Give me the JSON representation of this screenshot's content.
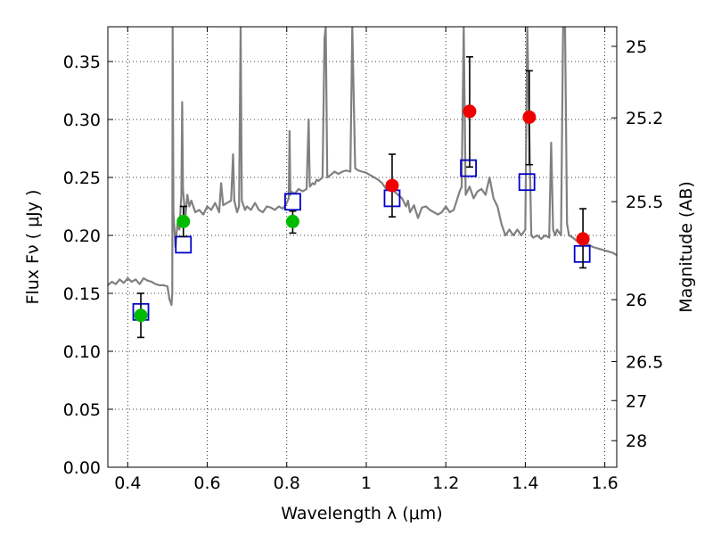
{
  "chart_data": {
    "type": "scatter",
    "title": "",
    "xlabel": "Wavelength  λ (μm)",
    "ylabel": "Flux  Fν  ( μJy )",
    "y2label": "Magnitude (AB)",
    "xlim": [
      0.35,
      1.63
    ],
    "ylim": [
      0.0,
      0.38
    ],
    "grid": true,
    "x_ticks": [
      {
        "value": 0.4,
        "label": "0.4"
      },
      {
        "value": 0.6,
        "label": "0.6"
      },
      {
        "value": 0.8,
        "label": "0.8"
      },
      {
        "value": 1.0,
        "label": "1"
      },
      {
        "value": 1.2,
        "label": "1.2"
      },
      {
        "value": 1.4,
        "label": "1.4"
      },
      {
        "value": 1.6,
        "label": "1.6"
      }
    ],
    "y_ticks": [
      {
        "value": 0.0,
        "label": "0.00"
      },
      {
        "value": 0.05,
        "label": "0.05"
      },
      {
        "value": 0.1,
        "label": "0.10"
      },
      {
        "value": 0.15,
        "label": "0.15"
      },
      {
        "value": 0.2,
        "label": "0.20"
      },
      {
        "value": 0.25,
        "label": "0.25"
      },
      {
        "value": 0.3,
        "label": "0.30"
      },
      {
        "value": 0.35,
        "label": "0.35"
      }
    ],
    "y2_ticks": [
      {
        "flux": 0.3631,
        "label": "25"
      },
      {
        "flux": 0.3014,
        "label": "25.2"
      },
      {
        "flux": 0.2291,
        "label": "25.5"
      },
      {
        "flux": 0.1446,
        "label": "26"
      },
      {
        "flux": 0.0912,
        "label": "26.5"
      },
      {
        "flux": 0.0575,
        "label": "27"
      },
      {
        "flux": 0.0229,
        "label": "28"
      }
    ],
    "series": [
      {
        "kind": "spectrum",
        "color": "#808080",
        "points": [
          [
            0.35,
            0.157
          ],
          [
            0.36,
            0.16
          ],
          [
            0.37,
            0.158
          ],
          [
            0.38,
            0.162
          ],
          [
            0.39,
            0.159
          ],
          [
            0.4,
            0.163
          ],
          [
            0.41,
            0.16
          ],
          [
            0.42,
            0.162
          ],
          [
            0.43,
            0.158
          ],
          [
            0.44,
            0.163
          ],
          [
            0.45,
            0.161
          ],
          [
            0.46,
            0.16
          ],
          [
            0.47,
            0.158
          ],
          [
            0.48,
            0.157
          ],
          [
            0.49,
            0.157
          ],
          [
            0.5,
            0.156
          ],
          [
            0.505,
            0.145
          ],
          [
            0.51,
            0.14
          ],
          [
            0.512,
            0.15
          ],
          [
            0.513,
            0.38
          ],
          [
            0.515,
            0.22
          ],
          [
            0.52,
            0.19
          ],
          [
            0.525,
            0.21
          ],
          [
            0.53,
            0.205
          ],
          [
            0.535,
            0.235
          ],
          [
            0.537,
            0.315
          ],
          [
            0.539,
            0.24
          ],
          [
            0.545,
            0.215
          ],
          [
            0.55,
            0.235
          ],
          [
            0.555,
            0.225
          ],
          [
            0.56,
            0.23
          ],
          [
            0.57,
            0.22
          ],
          [
            0.58,
            0.222
          ],
          [
            0.59,
            0.218
          ],
          [
            0.6,
            0.225
          ],
          [
            0.61,
            0.222
          ],
          [
            0.62,
            0.228
          ],
          [
            0.63,
            0.22
          ],
          [
            0.635,
            0.245
          ],
          [
            0.64,
            0.226
          ],
          [
            0.65,
            0.228
          ],
          [
            0.66,
            0.23
          ],
          [
            0.665,
            0.27
          ],
          [
            0.668,
            0.23
          ],
          [
            0.675,
            0.22
          ],
          [
            0.68,
            0.225
          ],
          [
            0.684,
            0.38
          ],
          [
            0.687,
            0.23
          ],
          [
            0.695,
            0.222
          ],
          [
            0.7,
            0.225
          ],
          [
            0.71,
            0.222
          ],
          [
            0.72,
            0.228
          ],
          [
            0.73,
            0.222
          ],
          [
            0.74,
            0.22
          ],
          [
            0.75,
            0.225
          ],
          [
            0.76,
            0.224
          ],
          [
            0.77,
            0.222
          ],
          [
            0.78,
            0.225
          ],
          [
            0.79,
            0.223
          ],
          [
            0.8,
            0.228
          ],
          [
            0.805,
            0.232
          ],
          [
            0.807,
            0.29
          ],
          [
            0.809,
            0.235
          ],
          [
            0.81,
            0.238
          ],
          [
            0.82,
            0.236
          ],
          [
            0.83,
            0.24
          ],
          [
            0.84,
            0.238
          ],
          [
            0.85,
            0.24
          ],
          [
            0.855,
            0.3
          ],
          [
            0.858,
            0.242
          ],
          [
            0.865,
            0.245
          ],
          [
            0.87,
            0.244
          ],
          [
            0.875,
            0.248
          ],
          [
            0.88,
            0.247
          ],
          [
            0.89,
            0.25
          ],
          [
            0.895,
            0.37
          ],
          [
            0.898,
            0.38
          ],
          [
            0.902,
            0.25
          ],
          [
            0.91,
            0.252
          ],
          [
            0.92,
            0.255
          ],
          [
            0.93,
            0.253
          ],
          [
            0.94,
            0.255
          ],
          [
            0.95,
            0.256
          ],
          [
            0.96,
            0.255
          ],
          [
            0.965,
            0.38
          ],
          [
            0.972,
            0.258
          ],
          [
            0.98,
            0.256
          ],
          [
            0.99,
            0.255
          ],
          [
            1.0,
            0.254
          ],
          [
            1.01,
            0.252
          ],
          [
            1.02,
            0.25
          ],
          [
            1.03,
            0.248
          ],
          [
            1.04,
            0.245
          ],
          [
            1.05,
            0.24
          ],
          [
            1.06,
            0.242
          ],
          [
            1.07,
            0.238
          ],
          [
            1.08,
            0.235
          ],
          [
            1.09,
            0.232
          ],
          [
            1.1,
            0.225
          ],
          [
            1.105,
            0.23
          ],
          [
            1.11,
            0.22
          ],
          [
            1.12,
            0.226
          ],
          [
            1.13,
            0.215
          ],
          [
            1.14,
            0.224
          ],
          [
            1.15,
            0.225
          ],
          [
            1.16,
            0.222
          ],
          [
            1.17,
            0.22
          ],
          [
            1.18,
            0.218
          ],
          [
            1.19,
            0.22
          ],
          [
            1.2,
            0.225
          ],
          [
            1.21,
            0.22
          ],
          [
            1.22,
            0.222
          ],
          [
            1.235,
            0.238
          ],
          [
            1.24,
            0.242
          ],
          [
            1.245,
            0.38
          ],
          [
            1.25,
            0.235
          ],
          [
            1.26,
            0.242
          ],
          [
            1.27,
            0.232
          ],
          [
            1.28,
            0.238
          ],
          [
            1.29,
            0.24
          ],
          [
            1.3,
            0.235
          ],
          [
            1.31,
            0.25
          ],
          [
            1.32,
            0.232
          ],
          [
            1.33,
            0.225
          ],
          [
            1.34,
            0.21
          ],
          [
            1.35,
            0.2
          ],
          [
            1.36,
            0.205
          ],
          [
            1.37,
            0.2
          ],
          [
            1.38,
            0.205
          ],
          [
            1.39,
            0.2
          ],
          [
            1.4,
            0.205
          ],
          [
            1.405,
            0.38
          ],
          [
            1.415,
            0.2
          ],
          [
            1.42,
            0.198
          ],
          [
            1.43,
            0.2
          ],
          [
            1.44,
            0.197
          ],
          [
            1.45,
            0.2
          ],
          [
            1.46,
            0.198
          ],
          [
            1.465,
            0.28
          ],
          [
            1.47,
            0.205
          ],
          [
            1.475,
            0.2
          ],
          [
            1.48,
            0.205
          ],
          [
            1.49,
            0.2
          ],
          [
            1.495,
            0.38
          ],
          [
            1.5,
            0.38
          ],
          [
            1.505,
            0.21
          ],
          [
            1.51,
            0.2
          ],
          [
            1.52,
            0.198
          ],
          [
            1.53,
            0.195
          ],
          [
            1.54,
            0.197
          ],
          [
            1.55,
            0.193
          ],
          [
            1.56,
            0.192
          ],
          [
            1.57,
            0.19
          ],
          [
            1.58,
            0.189
          ],
          [
            1.59,
            0.188
          ],
          [
            1.6,
            0.187
          ],
          [
            1.61,
            0.186
          ],
          [
            1.62,
            0.185
          ],
          [
            1.63,
            0.183
          ]
        ]
      },
      {
        "kind": "model-boxes",
        "color": "#0000cc",
        "points": [
          {
            "x": 0.433,
            "y": 0.134
          },
          {
            "x": 0.54,
            "y": 0.192
          },
          {
            "x": 0.815,
            "y": 0.229
          },
          {
            "x": 1.065,
            "y": 0.232
          },
          {
            "x": 1.257,
            "y": 0.258
          },
          {
            "x": 1.404,
            "y": 0.246
          },
          {
            "x": 1.543,
            "y": 0.184
          }
        ]
      },
      {
        "kind": "observed-green",
        "color": "#00bb00",
        "points": [
          {
            "x": 0.433,
            "y": 0.131,
            "err_lo": 0.112,
            "err_hi": 0.15
          },
          {
            "x": 0.54,
            "y": 0.212,
            "err_lo": 0.199,
            "err_hi": 0.225
          },
          {
            "x": 0.815,
            "y": 0.212,
            "err_lo": 0.202,
            "err_hi": 0.221
          }
        ]
      },
      {
        "kind": "observed-red",
        "color": "#ee0000",
        "points": [
          {
            "x": 1.065,
            "y": 0.243,
            "err_lo": 0.216,
            "err_hi": 0.27
          },
          {
            "x": 1.26,
            "y": 0.307,
            "err_lo": 0.259,
            "err_hi": 0.354
          },
          {
            "x": 1.41,
            "y": 0.302,
            "err_lo": 0.261,
            "err_hi": 0.342
          },
          {
            "x": 1.545,
            "y": 0.197,
            "err_lo": 0.172,
            "err_hi": 0.223
          }
        ]
      }
    ]
  }
}
